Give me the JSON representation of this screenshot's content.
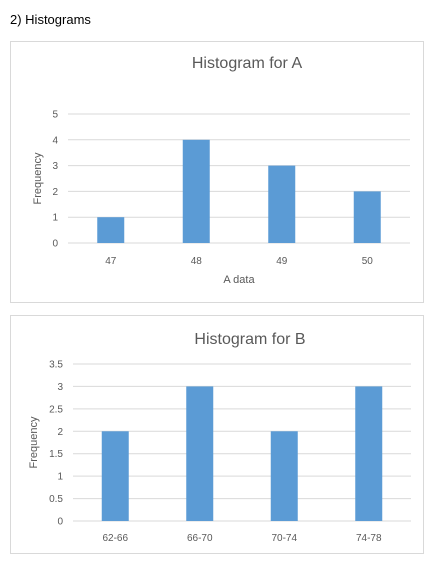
{
  "section_heading": "2) Histograms",
  "chart_data": [
    {
      "type": "bar",
      "title": "Histogram for A",
      "xlabel": "A data",
      "ylabel": "Frequency",
      "categories": [
        "47",
        "48",
        "49",
        "50"
      ],
      "values": [
        1,
        4,
        3,
        2
      ],
      "ylim": [
        0,
        5
      ],
      "yticks": [
        "0",
        "1",
        "2",
        "3",
        "4",
        "5"
      ],
      "grid": true,
      "color": "#5b9bd5"
    },
    {
      "type": "bar",
      "title": "Histogram for B",
      "xlabel": "",
      "ylabel": "Frequency",
      "categories": [
        "62-66",
        "66-70",
        "70-74",
        "74-78"
      ],
      "values": [
        2,
        3,
        2,
        3
      ],
      "ylim": [
        0,
        3.5
      ],
      "yticks": [
        "0",
        "0.5",
        "1",
        "1.5",
        "2",
        "2.5",
        "3",
        "3.5"
      ],
      "grid": true,
      "color": "#5b9bd5"
    }
  ]
}
